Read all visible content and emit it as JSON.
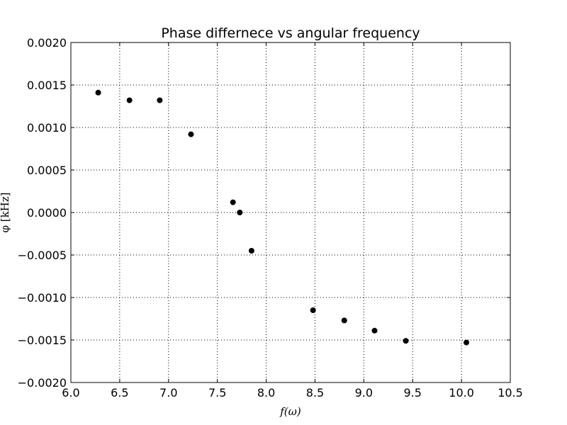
{
  "chart_data": {
    "type": "scatter",
    "title": "Phase differnece vs angular frequency",
    "xlabel": "f(ω)",
    "ylabel": "φ [kHz]",
    "xlim": [
      6.0,
      10.5
    ],
    "ylim": [
      -0.002,
      0.002
    ],
    "x_ticks": [
      "6.0",
      "6.5",
      "7.0",
      "7.5",
      "8.0",
      "8.5",
      "9.0",
      "9.5",
      "10.0",
      "10.5"
    ],
    "y_ticks": [
      "−0.0020",
      "−0.0015",
      "−0.0010",
      "−0.0005",
      "0.0000",
      "0.0005",
      "0.0010",
      "0.0015",
      "0.0020"
    ],
    "grid": true,
    "marker_color": "#000000",
    "points": [
      {
        "x": 6.28,
        "y": 0.00141
      },
      {
        "x": 6.6,
        "y": 0.00132
      },
      {
        "x": 6.91,
        "y": 0.00132
      },
      {
        "x": 7.23,
        "y": 0.00092
      },
      {
        "x": 7.66,
        "y": 0.00012
      },
      {
        "x": 7.73,
        "y": 0.0
      },
      {
        "x": 7.85,
        "y": -0.00045
      },
      {
        "x": 8.48,
        "y": -0.00115
      },
      {
        "x": 8.8,
        "y": -0.00127
      },
      {
        "x": 9.11,
        "y": -0.00139
      },
      {
        "x": 9.43,
        "y": -0.00151
      },
      {
        "x": 10.05,
        "y": -0.00153
      }
    ]
  }
}
